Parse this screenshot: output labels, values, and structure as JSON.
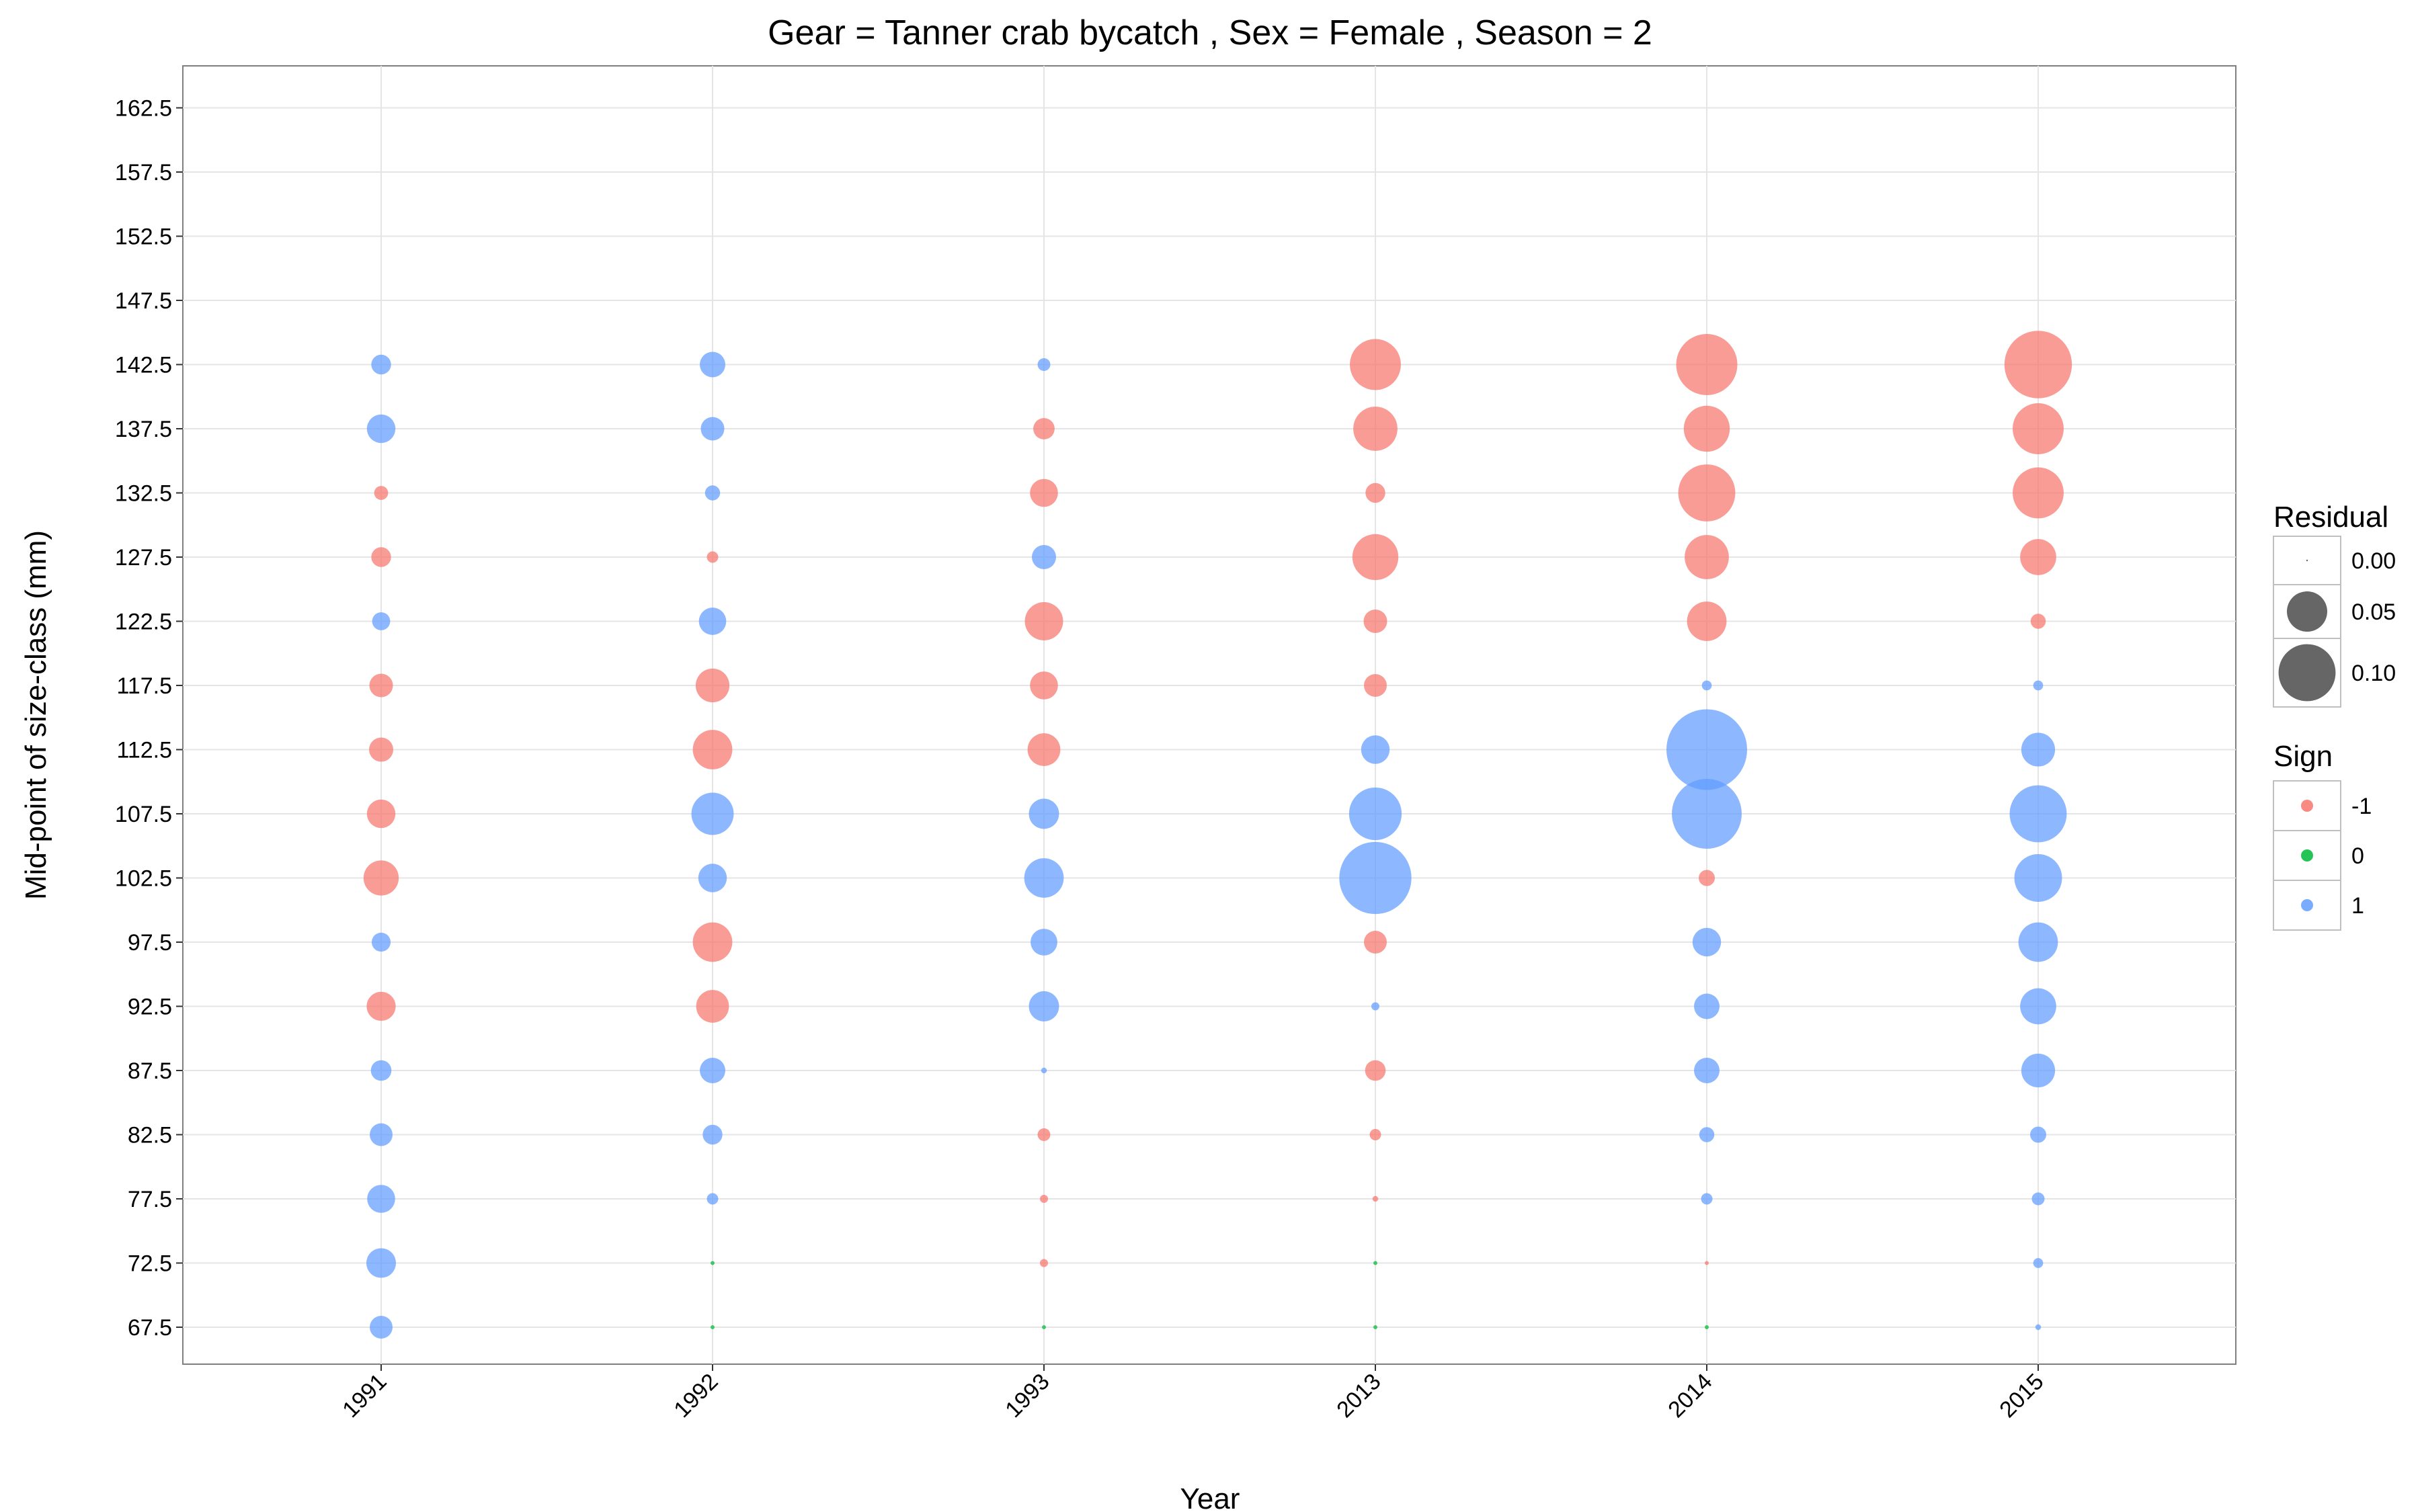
{
  "chart_data": {
    "type": "scatter",
    "title": "Gear = Tanner crab bycatch , Sex = Female , Season = 2",
    "xlabel": "Year",
    "ylabel": "Mid-point of size-class (mm)",
    "x_categories": [
      "1991",
      "1992",
      "1993",
      "2013",
      "2014",
      "2015"
    ],
    "y_ticks": [
      67.5,
      72.5,
      77.5,
      82.5,
      87.5,
      92.5,
      97.5,
      102.5,
      107.5,
      112.5,
      117.5,
      122.5,
      127.5,
      132.5,
      137.5,
      142.5,
      147.5,
      152.5,
      157.5,
      162.5
    ],
    "ylim": [
      64.5,
      164.5
    ],
    "grid": true,
    "colors": {
      "neg": "#F8766D",
      "zero": "#00BA38",
      "pos": "#619CFF"
    },
    "legend_size": {
      "title": "Residual",
      "labels": [
        "0.00",
        "0.05",
        "0.10"
      ],
      "values": [
        0.0,
        0.05,
        0.1
      ],
      "placement": "right"
    },
    "legend_sign": {
      "title": "Sign",
      "labels": [
        "-1",
        "0",
        "1"
      ],
      "placement": "right"
    },
    "points": [
      {
        "year": "1991",
        "size_class": 142.5,
        "residual": 0.012,
        "sign": 1
      },
      {
        "year": "1991",
        "size_class": 137.5,
        "residual": 0.025,
        "sign": 1
      },
      {
        "year": "1991",
        "size_class": 132.5,
        "residual": 0.006,
        "sign": -1
      },
      {
        "year": "1991",
        "size_class": 127.5,
        "residual": 0.012,
        "sign": -1
      },
      {
        "year": "1991",
        "size_class": 122.5,
        "residual": 0.01,
        "sign": 1
      },
      {
        "year": "1991",
        "size_class": 117.5,
        "residual": 0.017,
        "sign": -1
      },
      {
        "year": "1991",
        "size_class": 112.5,
        "residual": 0.018,
        "sign": -1
      },
      {
        "year": "1991",
        "size_class": 107.5,
        "residual": 0.025,
        "sign": -1
      },
      {
        "year": "1991",
        "size_class": 102.5,
        "residual": 0.038,
        "sign": -1
      },
      {
        "year": "1991",
        "size_class": 97.5,
        "residual": 0.011,
        "sign": 1
      },
      {
        "year": "1991",
        "size_class": 92.5,
        "residual": 0.026,
        "sign": -1
      },
      {
        "year": "1991",
        "size_class": 87.5,
        "residual": 0.013,
        "sign": 1
      },
      {
        "year": "1991",
        "size_class": 82.5,
        "residual": 0.016,
        "sign": 1
      },
      {
        "year": "1991",
        "size_class": 77.5,
        "residual": 0.024,
        "sign": 1
      },
      {
        "year": "1991",
        "size_class": 72.5,
        "residual": 0.027,
        "sign": 1
      },
      {
        "year": "1991",
        "size_class": 67.5,
        "residual": 0.016,
        "sign": 1
      },
      {
        "year": "1992",
        "size_class": 142.5,
        "residual": 0.02,
        "sign": 1
      },
      {
        "year": "1992",
        "size_class": 137.5,
        "residual": 0.017,
        "sign": 1
      },
      {
        "year": "1992",
        "size_class": 132.5,
        "residual": 0.007,
        "sign": 1
      },
      {
        "year": "1992",
        "size_class": 127.5,
        "residual": 0.004,
        "sign": -1
      },
      {
        "year": "1992",
        "size_class": 122.5,
        "residual": 0.023,
        "sign": 1
      },
      {
        "year": "1992",
        "size_class": 117.5,
        "residual": 0.035,
        "sign": -1
      },
      {
        "year": "1992",
        "size_class": 112.5,
        "residual": 0.048,
        "sign": -1
      },
      {
        "year": "1992",
        "size_class": 107.5,
        "residual": 0.055,
        "sign": 1
      },
      {
        "year": "1992",
        "size_class": 102.5,
        "residual": 0.025,
        "sign": 1
      },
      {
        "year": "1992",
        "size_class": 97.5,
        "residual": 0.048,
        "sign": -1
      },
      {
        "year": "1992",
        "size_class": 92.5,
        "residual": 0.033,
        "sign": -1
      },
      {
        "year": "1992",
        "size_class": 87.5,
        "residual": 0.02,
        "sign": 1
      },
      {
        "year": "1992",
        "size_class": 82.5,
        "residual": 0.012,
        "sign": 1
      },
      {
        "year": "1992",
        "size_class": 77.5,
        "residual": 0.004,
        "sign": 1
      },
      {
        "year": "1992",
        "size_class": 72.5,
        "residual": 0.0005,
        "sign": 0
      },
      {
        "year": "1992",
        "size_class": 67.5,
        "residual": 0.0005,
        "sign": 0
      },
      {
        "year": "1993",
        "size_class": 142.5,
        "residual": 0.005,
        "sign": 1
      },
      {
        "year": "1993",
        "size_class": 137.5,
        "residual": 0.014,
        "sign": -1
      },
      {
        "year": "1993",
        "size_class": 132.5,
        "residual": 0.024,
        "sign": -1
      },
      {
        "year": "1993",
        "size_class": 127.5,
        "residual": 0.018,
        "sign": 1
      },
      {
        "year": "1993",
        "size_class": 122.5,
        "residual": 0.045,
        "sign": -1
      },
      {
        "year": "1993",
        "size_class": 117.5,
        "residual": 0.024,
        "sign": -1
      },
      {
        "year": "1993",
        "size_class": 112.5,
        "residual": 0.033,
        "sign": -1
      },
      {
        "year": "1993",
        "size_class": 107.5,
        "residual": 0.028,
        "sign": 1
      },
      {
        "year": "1993",
        "size_class": 102.5,
        "residual": 0.048,
        "sign": 1
      },
      {
        "year": "1993",
        "size_class": 97.5,
        "residual": 0.022,
        "sign": 1
      },
      {
        "year": "1993",
        "size_class": 92.5,
        "residual": 0.028,
        "sign": 1
      },
      {
        "year": "1993",
        "size_class": 87.5,
        "residual": 0.001,
        "sign": 1
      },
      {
        "year": "1993",
        "size_class": 82.5,
        "residual": 0.005,
        "sign": -1
      },
      {
        "year": "1993",
        "size_class": 77.5,
        "residual": 0.002,
        "sign": -1
      },
      {
        "year": "1993",
        "size_class": 72.5,
        "residual": 0.002,
        "sign": -1
      },
      {
        "year": "1993",
        "size_class": 67.5,
        "residual": 0.0005,
        "sign": 0
      },
      {
        "year": "2013",
        "size_class": 142.5,
        "residual": 0.08,
        "sign": -1
      },
      {
        "year": "2013",
        "size_class": 137.5,
        "residual": 0.06,
        "sign": -1
      },
      {
        "year": "2013",
        "size_class": 132.5,
        "residual": 0.012,
        "sign": -1
      },
      {
        "year": "2013",
        "size_class": 127.5,
        "residual": 0.065,
        "sign": -1
      },
      {
        "year": "2013",
        "size_class": 122.5,
        "residual": 0.017,
        "sign": -1
      },
      {
        "year": "2013",
        "size_class": 117.5,
        "residual": 0.016,
        "sign": -1
      },
      {
        "year": "2013",
        "size_class": 112.5,
        "residual": 0.025,
        "sign": 1
      },
      {
        "year": "2013",
        "size_class": 107.5,
        "residual": 0.085,
        "sign": 1
      },
      {
        "year": "2013",
        "size_class": 102.5,
        "residual": 0.16,
        "sign": 1
      },
      {
        "year": "2013",
        "size_class": 97.5,
        "residual": 0.016,
        "sign": -1
      },
      {
        "year": "2013",
        "size_class": 92.5,
        "residual": 0.002,
        "sign": 1
      },
      {
        "year": "2013",
        "size_class": 87.5,
        "residual": 0.013,
        "sign": -1
      },
      {
        "year": "2013",
        "size_class": 82.5,
        "residual": 0.004,
        "sign": -1
      },
      {
        "year": "2013",
        "size_class": 77.5,
        "residual": 0.001,
        "sign": -1
      },
      {
        "year": "2013",
        "size_class": 72.5,
        "residual": 0.0005,
        "sign": 0
      },
      {
        "year": "2013",
        "size_class": 67.5,
        "residual": 0.0005,
        "sign": 0
      },
      {
        "year": "2014",
        "size_class": 142.5,
        "residual": 0.115,
        "sign": -1
      },
      {
        "year": "2014",
        "size_class": 137.5,
        "residual": 0.065,
        "sign": -1
      },
      {
        "year": "2014",
        "size_class": 132.5,
        "residual": 0.1,
        "sign": -1
      },
      {
        "year": "2014",
        "size_class": 127.5,
        "residual": 0.06,
        "sign": -1
      },
      {
        "year": "2014",
        "size_class": 122.5,
        "residual": 0.048,
        "sign": -1
      },
      {
        "year": "2014",
        "size_class": 117.5,
        "residual": 0.003,
        "sign": 1
      },
      {
        "year": "2014",
        "size_class": 112.5,
        "residual": 0.2,
        "sign": 1
      },
      {
        "year": "2014",
        "size_class": 107.5,
        "residual": 0.15,
        "sign": 1
      },
      {
        "year": "2014",
        "size_class": 102.5,
        "residual": 0.008,
        "sign": -1
      },
      {
        "year": "2014",
        "size_class": 97.5,
        "residual": 0.025,
        "sign": 1
      },
      {
        "year": "2014",
        "size_class": 92.5,
        "residual": 0.02,
        "sign": 1
      },
      {
        "year": "2014",
        "size_class": 87.5,
        "residual": 0.02,
        "sign": 1
      },
      {
        "year": "2014",
        "size_class": 82.5,
        "residual": 0.007,
        "sign": 1
      },
      {
        "year": "2014",
        "size_class": 77.5,
        "residual": 0.004,
        "sign": 1
      },
      {
        "year": "2014",
        "size_class": 72.5,
        "residual": 0.0005,
        "sign": -1
      },
      {
        "year": "2014",
        "size_class": 67.5,
        "residual": 0.0005,
        "sign": 0
      },
      {
        "year": "2015",
        "size_class": 142.5,
        "residual": 0.14,
        "sign": -1
      },
      {
        "year": "2015",
        "size_class": 137.5,
        "residual": 0.08,
        "sign": -1
      },
      {
        "year": "2015",
        "size_class": 132.5,
        "residual": 0.08,
        "sign": -1
      },
      {
        "year": "2015",
        "size_class": 127.5,
        "residual": 0.04,
        "sign": -1
      },
      {
        "year": "2015",
        "size_class": 122.5,
        "residual": 0.007,
        "sign": -1
      },
      {
        "year": "2015",
        "size_class": 117.5,
        "residual": 0.003,
        "sign": 1
      },
      {
        "year": "2015",
        "size_class": 112.5,
        "residual": 0.035,
        "sign": 1
      },
      {
        "year": "2015",
        "size_class": 107.5,
        "residual": 0.1,
        "sign": 1
      },
      {
        "year": "2015",
        "size_class": 102.5,
        "residual": 0.07,
        "sign": 1
      },
      {
        "year": "2015",
        "size_class": 97.5,
        "residual": 0.048,
        "sign": 1
      },
      {
        "year": "2015",
        "size_class": 92.5,
        "residual": 0.04,
        "sign": 1
      },
      {
        "year": "2015",
        "size_class": 87.5,
        "residual": 0.035,
        "sign": 1
      },
      {
        "year": "2015",
        "size_class": 82.5,
        "residual": 0.008,
        "sign": 1
      },
      {
        "year": "2015",
        "size_class": 77.5,
        "residual": 0.005,
        "sign": 1
      },
      {
        "year": "2015",
        "size_class": 72.5,
        "residual": 0.003,
        "sign": 1
      },
      {
        "year": "2015",
        "size_class": 67.5,
        "residual": 0.001,
        "sign": 1
      }
    ]
  }
}
